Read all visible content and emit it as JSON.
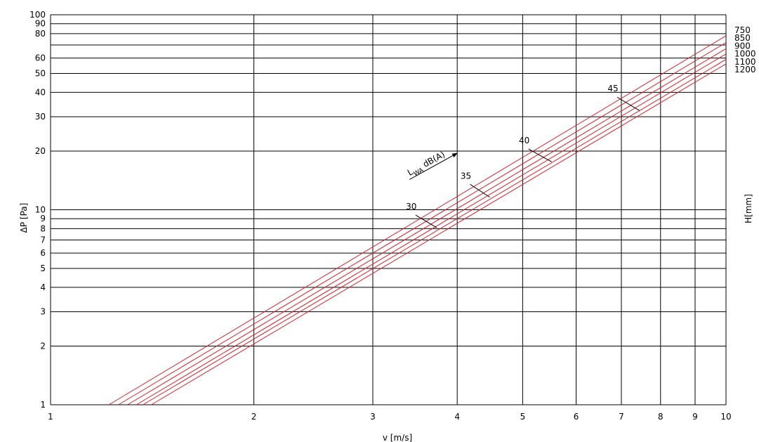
{
  "chart_data": {
    "type": "line",
    "xscale": "log",
    "yscale": "log",
    "xlim": [
      1,
      10
    ],
    "ylim": [
      1,
      100
    ],
    "xlabel": "v [m/s]",
    "ylabel": "ΔP [Pa]",
    "right_label": "H[mm]",
    "x_ticks": [
      1,
      2,
      3,
      4,
      5,
      6,
      7,
      8,
      9,
      10
    ],
    "y_ticks": [
      1,
      2,
      3,
      4,
      5,
      6,
      7,
      8,
      9,
      10,
      20,
      30,
      40,
      50,
      60,
      80,
      90,
      100
    ],
    "grid": true,
    "series_color": "#d9202a",
    "series": [
      {
        "name": "750",
        "points": [
          [
            1.22,
            1
          ],
          [
            10,
            78
          ]
        ]
      },
      {
        "name": "850",
        "points": [
          [
            1.26,
            1
          ],
          [
            10,
            72
          ]
        ]
      },
      {
        "name": "900",
        "points": [
          [
            1.3,
            1
          ],
          [
            10,
            67
          ]
        ]
      },
      {
        "name": "1000",
        "points": [
          [
            1.34,
            1
          ],
          [
            10,
            63
          ]
        ]
      },
      {
        "name": "1100",
        "points": [
          [
            1.37,
            1
          ],
          [
            10,
            59
          ]
        ]
      },
      {
        "name": "1200",
        "points": [
          [
            1.41,
            1
          ],
          [
            10,
            56
          ]
        ]
      }
    ],
    "noise_isolines": [
      {
        "label": "30",
        "points": [
          [
            3.47,
            9.4
          ],
          [
            3.73,
            8.1
          ]
        ]
      },
      {
        "label": "35",
        "points": [
          [
            4.18,
            13.5
          ],
          [
            4.47,
            11.6
          ]
        ]
      },
      {
        "label": "40",
        "points": [
          [
            5.1,
            20.5
          ],
          [
            5.52,
            17.6
          ]
        ]
      },
      {
        "label": "45",
        "points": [
          [
            6.9,
            37.8
          ],
          [
            7.45,
            32.2
          ]
        ]
      }
    ],
    "noise_annotation": {
      "text_main": "L",
      "text_sub": "WA",
      "text_rest": " dB(A)",
      "arrow_from": [
        3.4,
        14.3
      ],
      "arrow_to": [
        4.0,
        19.5
      ]
    }
  }
}
